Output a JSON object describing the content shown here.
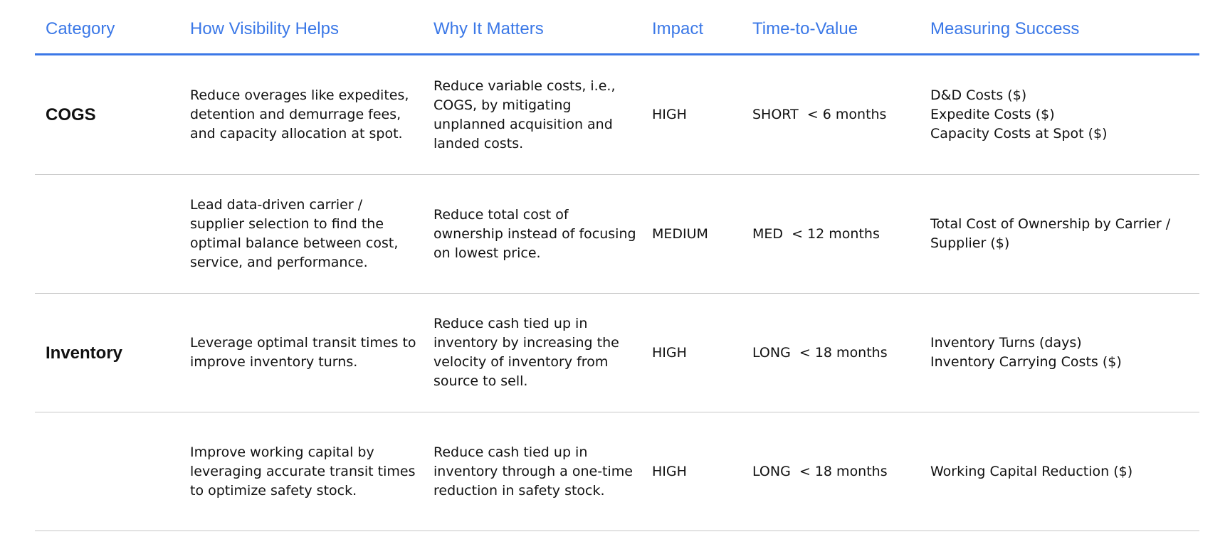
{
  "headers": {
    "category": "Category",
    "how": "How Visibility Helps",
    "why": "Why It Matters",
    "impact": "Impact",
    "ttv": "Time-to-Value",
    "measure": "Measuring Success"
  },
  "rows": [
    {
      "category": "COGS",
      "how": "Reduce overages like expedites,\ndetention and demurrage fees,\nand capacity allocation at spot.",
      "why": "Reduce variable costs, i.e.,\nCOGS, by mitigating\nunplanned acquisition and\nlanded costs.",
      "impact": "HIGH",
      "ttv": "SHORT  < 6 months",
      "measure": "D&D Costs ($)\nExpedite Costs ($)\nCapacity Costs at Spot ($)"
    },
    {
      "category": "",
      "how": "Lead data-driven carrier /\nsupplier selection to find the\noptimal balance between cost,\nservice, and performance.",
      "why": "Reduce total cost of\nownership instead of focusing\non lowest price.",
      "impact": "MEDIUM",
      "ttv": "MED  < 12 months",
      "measure": "Total Cost of Ownership by Carrier /\nSupplier ($)"
    },
    {
      "category": "Inventory",
      "how": "Leverage optimal transit times to\nimprove inventory turns.",
      "why": "Reduce cash tied up in\ninventory by increasing the\nvelocity of inventory from\nsource to sell.",
      "impact": "HIGH",
      "ttv": "LONG  < 18 months",
      "measure": "Inventory Turns (days)\nInventory Carrying Costs ($)"
    },
    {
      "category": "",
      "how": "Improve working capital by\nleveraging accurate transit times\nto optimize safety stock.",
      "why": "Reduce cash tied up in\ninventory through a one-time\nreduction in safety stock.",
      "impact": "HIGH",
      "ttv": "LONG  < 18 months",
      "measure": "Working Capital Reduction ($)"
    }
  ],
  "colors": {
    "header_text": "#3b78e7",
    "header_rule": "#3b78e7",
    "row_rule": "#c6c6c6"
  }
}
